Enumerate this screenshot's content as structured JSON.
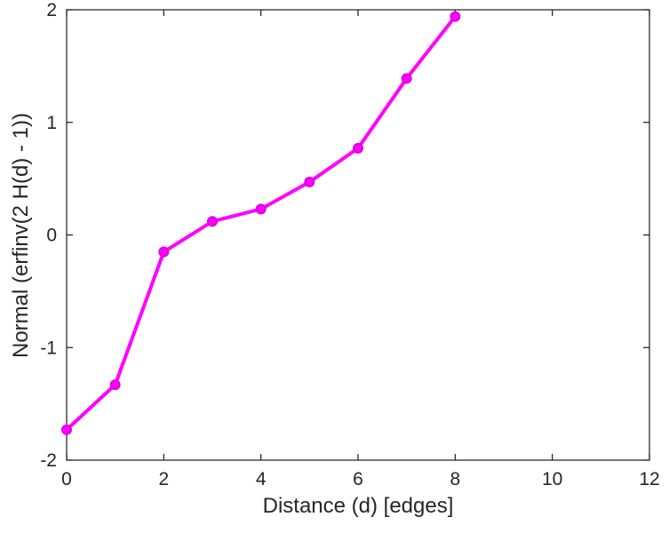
{
  "chart_data": {
    "type": "line",
    "title": "",
    "xlabel": "Distance (d) [edges]",
    "ylabel": "Normal (erfinv(2 H(d) - 1))",
    "x": [
      0,
      1,
      2,
      3,
      4,
      5,
      6,
      7,
      8
    ],
    "y": [
      -1.73,
      -1.33,
      -0.15,
      0.12,
      0.23,
      0.47,
      0.77,
      1.39,
      1.94
    ],
    "xlim": [
      0,
      12
    ],
    "ylim": [
      -2,
      2
    ],
    "xticks": [
      0,
      2,
      4,
      6,
      8,
      10,
      12
    ],
    "yticks": [
      -2,
      -1,
      0,
      1,
      2
    ],
    "grid": false,
    "legend": "none",
    "line_color": "#FF00FF",
    "marker": "circle",
    "marker_color": "#FF00FF",
    "marker_edge_color": "#E000E0",
    "axis_color": "#1a1a1a",
    "text_color": "#262626",
    "background": "#FFFFFF"
  }
}
